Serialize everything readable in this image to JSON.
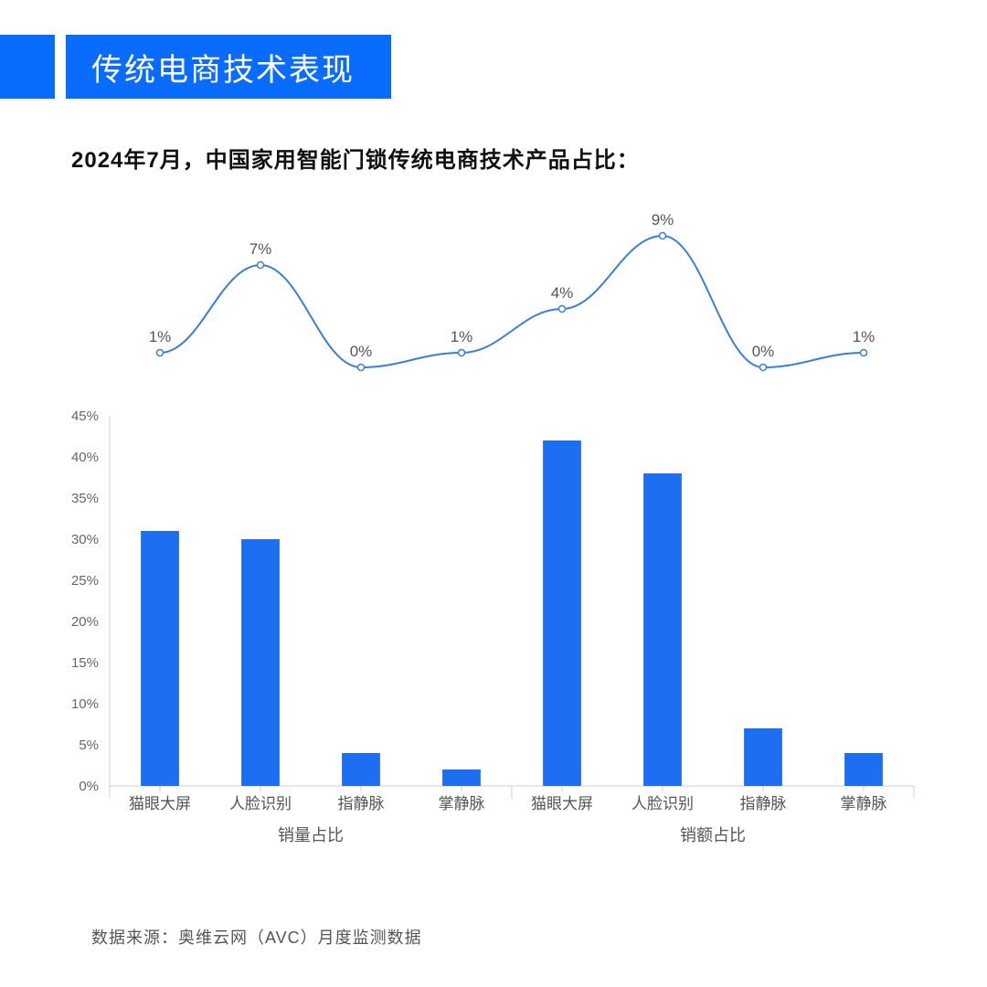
{
  "title": "传统电商技术表现",
  "subtitle": "2024年7月，中国家用智能门锁传统电商技术产品占比：",
  "source": "数据来源：奥维云网（AVC）月度监测数据",
  "colors": {
    "brand_blue": "#0a6cff",
    "bar_fill": "#1d6ef0",
    "line_stroke": "#3a7fd5",
    "marker_fill": "#ffffff",
    "axis": "#cfcfcf",
    "tick_text": "#666666",
    "cat_text": "#555555",
    "value_text": "#555555",
    "background": "#ffffff"
  },
  "bar_chart": {
    "type": "bar",
    "y_axis": {
      "min": 0,
      "max": 45,
      "step": 5,
      "suffix": "%"
    },
    "groups": [
      {
        "label": "销量占比",
        "categories": [
          "猫眼大屏",
          "人脸识别",
          "指静脉",
          "掌静脉"
        ],
        "values": [
          31,
          30,
          4,
          2
        ]
      },
      {
        "label": "销额占比",
        "categories": [
          "猫眼大屏",
          "人脸识别",
          "指静脉",
          "掌静脉"
        ],
        "values": [
          42,
          38,
          7,
          4
        ]
      }
    ],
    "bar_width_ratio": 0.38
  },
  "line_chart": {
    "type": "line",
    "values": [
      1,
      7,
      0,
      1,
      4,
      9,
      0,
      1
    ],
    "suffix": "%",
    "marker_radius": 3.5,
    "line_width": 2
  },
  "layout": {
    "title_fontsize": 34,
    "subtitle_fontsize": 24,
    "tick_fontsize": 15,
    "cat_fontsize": 17,
    "group_fontsize": 18,
    "value_fontsize": 17,
    "source_fontsize": 18
  }
}
